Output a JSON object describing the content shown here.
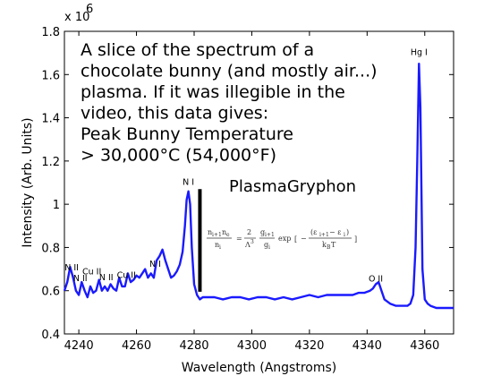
{
  "chart_data": {
    "type": "line",
    "xlabel": "Wavelength (Angstroms)",
    "ylabel": "Intensity (Arb. Units)",
    "xlim": [
      4235,
      4370
    ],
    "ylim": [
      0.4,
      1.8
    ],
    "y_multiplier_label": "x 10",
    "y_multiplier_exponent": "6",
    "x_ticks": [
      "4240",
      "4260",
      "4280",
      "4300",
      "4320",
      "4340",
      "4360"
    ],
    "y_ticks": [
      "0.4",
      "0.6",
      "0.8",
      "1",
      "1.2",
      "1.4",
      "1.6",
      "1.8"
    ],
    "series_color": "#1a1aff",
    "grid": false,
    "series": [
      {
        "x": [
          4235,
          4236,
          4237,
          4238,
          4239,
          4240,
          4241,
          4242,
          4243,
          4244,
          4245,
          4246,
          4247,
          4248,
          4249,
          4250,
          4251,
          4252,
          4253,
          4254,
          4255,
          4256,
          4257,
          4258,
          4259,
          4260,
          4261,
          4262,
          4263,
          4264,
          4265,
          4266,
          4267,
          4268,
          4269,
          4270,
          4271,
          4272,
          4273,
          4274,
          4275,
          4276,
          4276.8,
          4277.4,
          4278,
          4278.6,
          4279.2,
          4280,
          4281,
          4282,
          4283,
          4285,
          4287,
          4290,
          4293,
          4296,
          4299,
          4302,
          4305,
          4308,
          4311,
          4314,
          4317,
          4320,
          4323,
          4326,
          4329,
          4332,
          4335,
          4337,
          4339,
          4341,
          4342,
          4343,
          4344,
          4345,
          4346,
          4348,
          4350,
          4352,
          4354,
          4355,
          4356,
          4356.8,
          4357.4,
          4358,
          4358.5,
          4359.2,
          4360,
          4361,
          4362,
          4364,
          4366,
          4368,
          4370
        ],
        "y": [
          0.6,
          0.64,
          0.71,
          0.66,
          0.6,
          0.58,
          0.64,
          0.6,
          0.57,
          0.62,
          0.59,
          0.6,
          0.65,
          0.6,
          0.62,
          0.6,
          0.63,
          0.61,
          0.6,
          0.66,
          0.62,
          0.62,
          0.68,
          0.64,
          0.65,
          0.67,
          0.66,
          0.68,
          0.7,
          0.66,
          0.68,
          0.66,
          0.74,
          0.76,
          0.79,
          0.74,
          0.7,
          0.66,
          0.67,
          0.69,
          0.72,
          0.78,
          0.9,
          1.02,
          1.06,
          1.0,
          0.8,
          0.63,
          0.58,
          0.56,
          0.57,
          0.57,
          0.57,
          0.56,
          0.57,
          0.57,
          0.56,
          0.57,
          0.57,
          0.56,
          0.57,
          0.56,
          0.57,
          0.58,
          0.57,
          0.58,
          0.58,
          0.58,
          0.58,
          0.59,
          0.59,
          0.6,
          0.61,
          0.63,
          0.64,
          0.6,
          0.56,
          0.54,
          0.53,
          0.53,
          0.53,
          0.54,
          0.58,
          0.8,
          1.2,
          1.65,
          1.45,
          0.7,
          0.56,
          0.54,
          0.53,
          0.52,
          0.52,
          0.52,
          0.52
        ]
      }
    ],
    "peak_labels": [
      {
        "text": "N II",
        "x": 4237.5,
        "y": 0.695
      },
      {
        "text": "N II",
        "x": 4240.5,
        "y": 0.645
      },
      {
        "text": "Cu II",
        "x": 4244.5,
        "y": 0.675
      },
      {
        "text": "N II",
        "x": 4249.5,
        "y": 0.648
      },
      {
        "text": "Cu II",
        "x": 4256.5,
        "y": 0.658
      },
      {
        "text": "N I",
        "x": 4266.5,
        "y": 0.71
      },
      {
        "text": "N I",
        "x": 4278,
        "y": 1.09
      },
      {
        "text": "O II",
        "x": 4343,
        "y": 0.643
      },
      {
        "text": "Hg I",
        "x": 4358,
        "y": 1.69
      }
    ],
    "annotation_lines": [
      "A slice of the spectrum of a",
      "chocolate bunny (and mostly air...)",
      "plasma.  If it was illegible in the",
      "video, this data gives:",
      "Peak Bunny Temperature",
      "> 30,000°C (54,000°F)"
    ],
    "watermark": "PlasmaGryphon",
    "marker_line": {
      "x": 4282,
      "y_from": 0.595,
      "y_to": 1.07
    }
  }
}
